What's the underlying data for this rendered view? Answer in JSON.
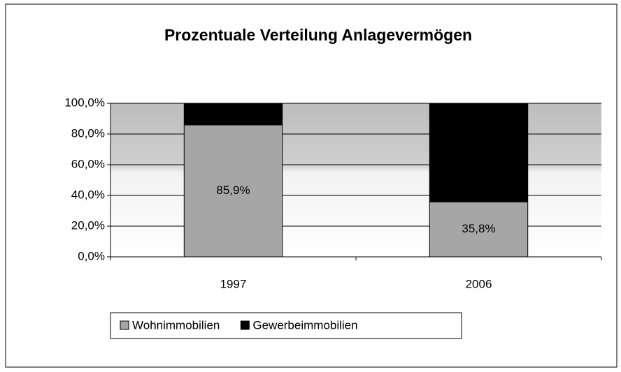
{
  "chart_data": {
    "type": "stacked_bar",
    "title": "Prozentuale Verteilung Anlagevermögen",
    "categories": [
      "1997",
      "2006"
    ],
    "series": [
      {
        "name": "Wohnimmobilien",
        "color": "#a6a6a6",
        "values": [
          85.9,
          35.8
        ],
        "value_labels": [
          "85,9%",
          "35,8%"
        ]
      },
      {
        "name": "Gewerbeimmobilien",
        "color": "#000000",
        "values": [
          14.1,
          64.2
        ]
      }
    ],
    "ylim": [
      0,
      100
    ],
    "yticks": [
      {
        "value": 0,
        "label": "0,0%"
      },
      {
        "value": 20,
        "label": "20,0%"
      },
      {
        "value": 40,
        "label": "40,0%"
      },
      {
        "value": 60,
        "label": "60,0%"
      },
      {
        "value": 80,
        "label": "80,0%"
      },
      {
        "value": 100,
        "label": "100,0%"
      }
    ],
    "grid": true,
    "legend": "bottom"
  }
}
